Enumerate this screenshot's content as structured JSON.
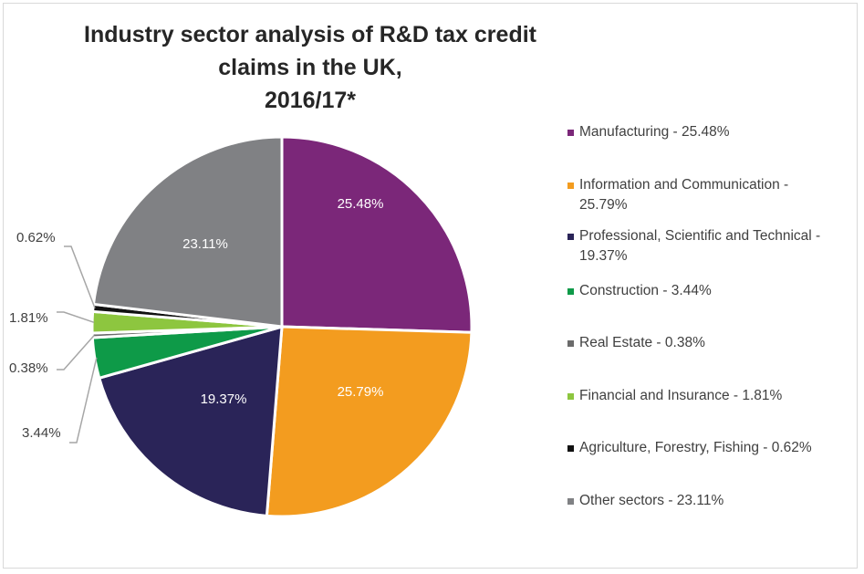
{
  "chart_data": {
    "type": "pie",
    "title_line1": "Industry sector analysis of R&D tax credit claims in the UK,",
    "title_line2": "2016/17*",
    "legend_position": "right",
    "slices": [
      {
        "name": "Manufacturing",
        "value": 25.48,
        "label": "25.48%",
        "legend": "Manufacturing - 25.48%",
        "color": "#7b2779",
        "label_inside": true
      },
      {
        "name": "Information and Communication",
        "value": 25.79,
        "label": "25.79%",
        "legend": "Information and Communication - 25.79%",
        "color": "#f39c1f",
        "label_inside": true
      },
      {
        "name": "Professional, Scientific and Technical",
        "value": 19.37,
        "label": "19.37%",
        "legend": "Professional, Scientific and Technical - 19.37%",
        "color": "#2a2458",
        "label_inside": true
      },
      {
        "name": "Construction",
        "value": 3.44,
        "label": "3.44%",
        "legend": "Construction - 3.44%",
        "color": "#0e9a48",
        "label_inside": false
      },
      {
        "name": "Real Estate",
        "value": 0.38,
        "label": "0.38%",
        "legend": "Real Estate - 0.38%",
        "color": "#6b6b6b",
        "label_inside": false
      },
      {
        "name": "Financial and Insurance",
        "value": 1.81,
        "label": "1.81%",
        "legend": "Financial and Insurance - 1.81%",
        "color": "#8dc63f",
        "label_inside": false
      },
      {
        "name": "Agriculture, Forestry, Fishing",
        "value": 0.62,
        "label": "0.62%",
        "legend": "Agriculture, Forestry, Fishing - 0.62%",
        "color": "#111111",
        "label_inside": false
      },
      {
        "name": "Other sectors",
        "value": 23.11,
        "label": "23.11%",
        "legend": "Other sectors - 23.11%",
        "color": "#808184",
        "label_inside": true
      }
    ]
  }
}
